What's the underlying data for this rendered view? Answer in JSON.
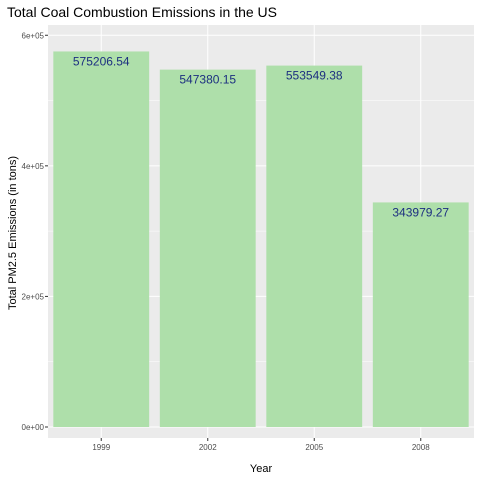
{
  "chart_data": {
    "type": "bar",
    "title": "Total Coal Combustion Emissions in the US",
    "xlabel": "Year",
    "ylabel": "Total PM2.5 Emissions (in tons)",
    "categories": [
      "1999",
      "2002",
      "2005",
      "2008"
    ],
    "values": [
      575206.54,
      547380.15,
      553549.38,
      343979.27
    ],
    "data_labels": [
      "575206.54",
      "547380.15",
      "553549.38",
      "343979.27"
    ],
    "y_ticks": [
      0,
      200000,
      400000,
      600000
    ],
    "y_tick_labels": [
      "0e+00",
      "2e+05",
      "4e+05",
      "6e+05"
    ],
    "ylim": [
      0,
      605000
    ],
    "grid": true,
    "legend": "none",
    "colors": {
      "bar": "#aedfaa",
      "panel": "#ebebeb",
      "grid": "#ffffff",
      "label": "#1c2f80"
    }
  }
}
